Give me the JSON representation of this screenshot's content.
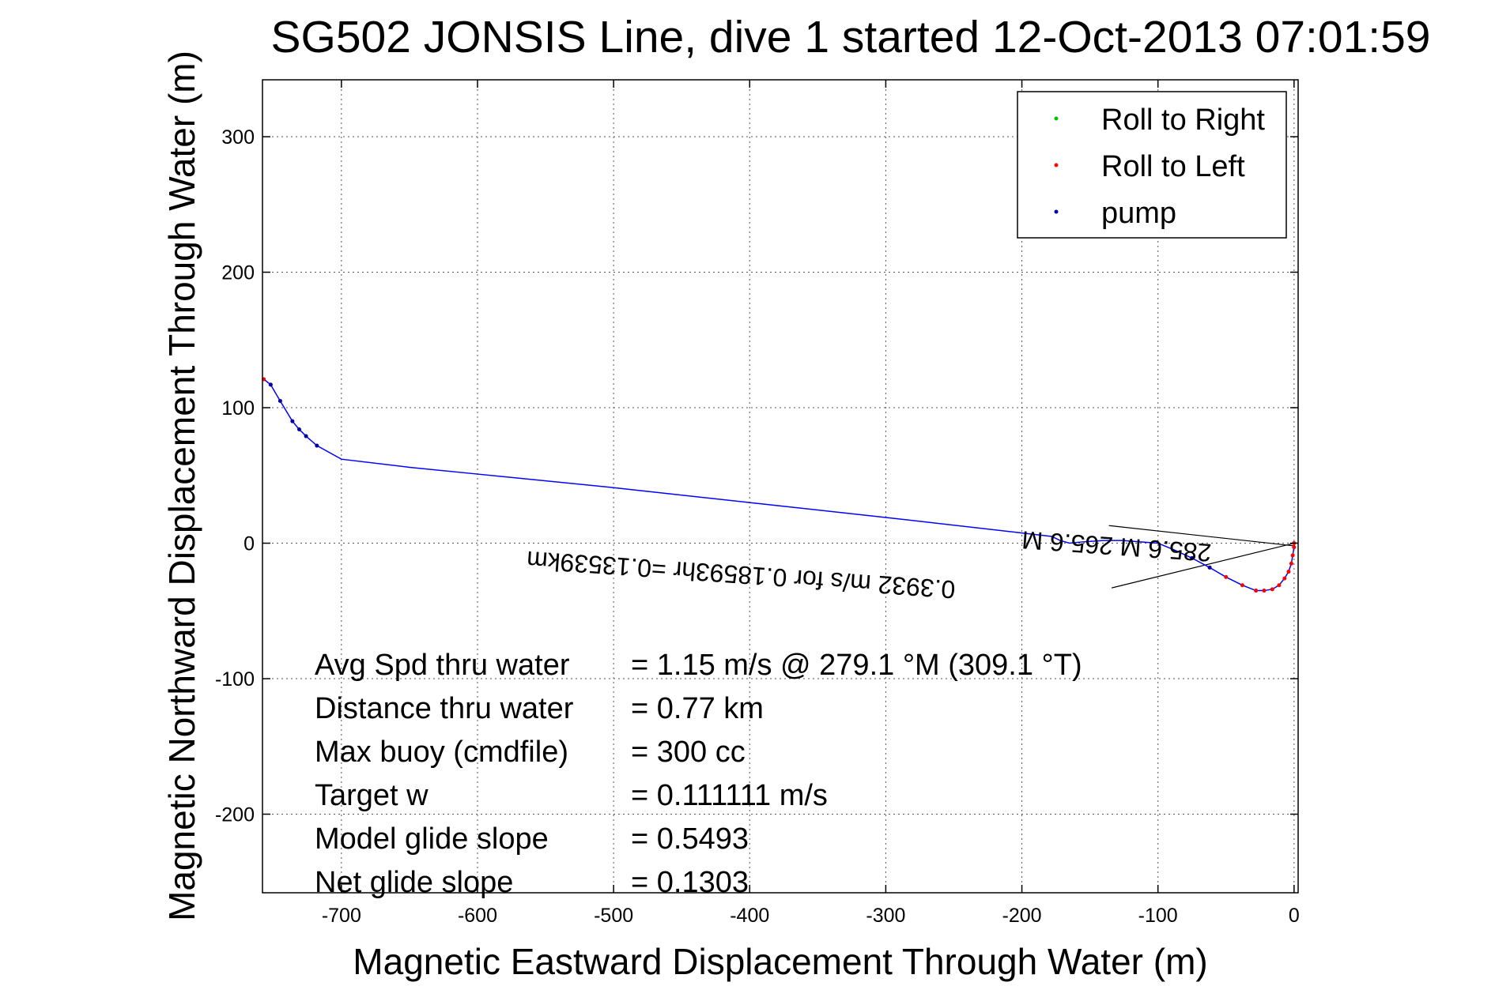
{
  "colors": {
    "track": "#0000ff",
    "roll_right": "#00c000",
    "roll_left": "#ff0000",
    "pump": "#0000a0",
    "axes": "#000000",
    "background": "#ffffff"
  },
  "chart_data": {
    "type": "line",
    "title": "SG502 JONSIS Line, dive 1 started 12-Oct-2013 07:01:59",
    "xlabel": "Magnetic Eastward Displacement Through Water (m)",
    "ylabel": "Magnetic Northward Displacement Through Water (m)",
    "xlim": [
      -758,
      3
    ],
    "ylim": [
      -258,
      342
    ],
    "xticks": [
      -700,
      -600,
      -500,
      -400,
      -300,
      -200,
      -100,
      0
    ],
    "yticks": [
      -200,
      -100,
      0,
      100,
      200,
      300
    ],
    "xtick_labels": [
      "-700",
      "-600",
      "-500",
      "-400",
      "-300",
      "-200",
      "-100",
      "0"
    ],
    "ytick_labels": [
      "-200",
      "-100",
      "0",
      "100",
      "200",
      "300"
    ],
    "grid": true,
    "legend_position": "top-right",
    "legend": [
      {
        "label": "Roll to Right",
        "color": "#00c000"
      },
      {
        "label": "Roll to Left",
        "color": "#ff0000"
      },
      {
        "label": "pump",
        "color": "#0000a0"
      }
    ],
    "track": {
      "x": [
        0,
        0,
        -1,
        -2,
        -4,
        -7,
        -11,
        -16,
        -22,
        -28,
        -38,
        -50,
        -62,
        -75,
        -88,
        -100,
        -113,
        -126,
        -140,
        -155,
        -165,
        -172,
        -178,
        -300,
        -400,
        -500,
        -600,
        -650,
        -700,
        -718,
        -726,
        -731,
        -736,
        -745,
        -752,
        -757
      ],
      "y": [
        0,
        -3,
        -9,
        -15,
        -21,
        -26,
        -31,
        -34,
        -35,
        -35,
        -31,
        -25,
        -18,
        -11,
        -5,
        0,
        1,
        2,
        2,
        1,
        0,
        2,
        5,
        19,
        30,
        41,
        51,
        56,
        62,
        72,
        79,
        84,
        90,
        105,
        117,
        121
      ]
    },
    "roll_left_points": {
      "x": [
        0,
        0,
        -1,
        -2,
        -4,
        -7,
        -11,
        -16,
        -22,
        -28,
        -38,
        -50,
        -62,
        -752,
        -757
      ],
      "y": [
        0,
        -3,
        -9,
        -15,
        -21,
        -26,
        -31,
        -34,
        -35,
        -35,
        -31,
        -25,
        -18,
        117,
        121
      ]
    },
    "pump_points": {
      "x": [
        -718,
        -726,
        -731,
        -736,
        -745,
        -752,
        -62,
        -75
      ],
      "y": [
        72,
        79,
        84,
        90,
        105,
        117,
        -18,
        -11
      ]
    },
    "current_lines": [
      {
        "x": [
          -136,
          0
        ],
        "y": [
          13,
          -2
        ]
      },
      {
        "x": [
          -134,
          0
        ],
        "y": [
          -33,
          0
        ]
      }
    ],
    "annotations": [
      {
        "text": "0.3932 m/s for 0.18593hr =0.13539km",
        "rotation_deg": 184,
        "x": -406,
        "y": -17,
        "upside_down": true
      },
      {
        "text": "285.6 M 265.6 M",
        "rotation_deg": 184,
        "x": -130,
        "y": 4,
        "upside_down": true
      }
    ],
    "stats": [
      {
        "label": "Avg Spd thru water",
        "value": "=  1.15 m/s @ 279.1 °M (309.1 °T)"
      },
      {
        "label": "Distance thru water",
        "value": "=  0.77 km"
      },
      {
        "label": "Max buoy (cmdfile)",
        "value": "= 300 cc"
      },
      {
        "label": "Target w",
        "value": "= 0.111111 m/s"
      },
      {
        "label": "Model glide slope",
        "value": "= 0.5493"
      },
      {
        "label": "Net glide slope",
        "value": "= 0.1303"
      }
    ]
  }
}
